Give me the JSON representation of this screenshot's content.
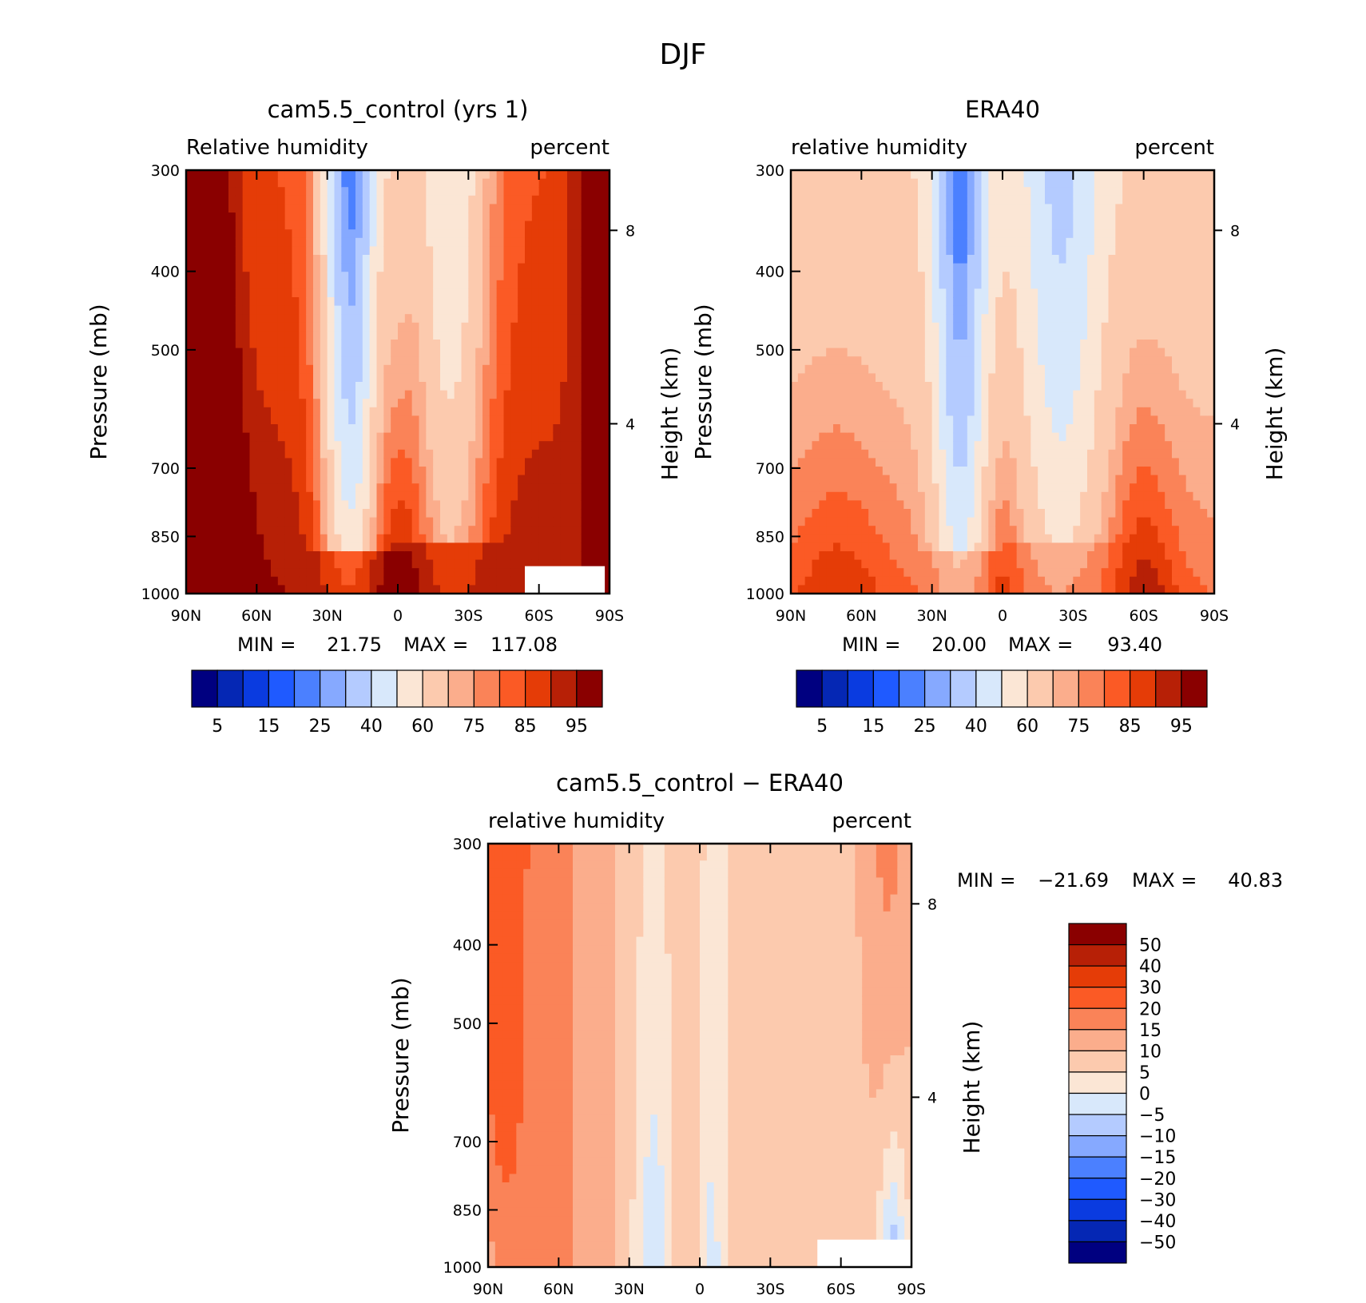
{
  "title": "DJF",
  "colors": {
    "abs_scale": [
      "#000080",
      "#0527b4",
      "#0a3be0",
      "#1f5aff",
      "#4b80ff",
      "#86a9ff",
      "#b4cbff",
      "#d8e8fb",
      "#fbe6d5",
      "#fccaae",
      "#fbad8c",
      "#fa8358",
      "#fb5a25",
      "#e53c07",
      "#b72006",
      "#8a0000"
    ],
    "diff_scale": [
      "#000080",
      "#0527b4",
      "#0a3be0",
      "#1f5aff",
      "#4b80ff",
      "#86a9ff",
      "#b4cbff",
      "#d8e8fb",
      "#fbe6d5",
      "#fccaae",
      "#fbad8c",
      "#fa8358",
      "#fb5a25",
      "#e53c07",
      "#b72006",
      "#8a0000"
    ]
  },
  "chart_data": [
    {
      "type": "heatmap",
      "title": "cam5.5_control (yrs 1)",
      "left_label": "Relative humidity",
      "right_label": "percent",
      "xlabel": "",
      "ylabel": "Pressure (mb)",
      "ylabel_right": "Height (km)",
      "x_ticks": [
        "90N",
        "60N",
        "30N",
        "0",
        "30S",
        "60S",
        "90S"
      ],
      "x_range": [
        90,
        -90
      ],
      "y_ticks": [
        "300",
        "400",
        "500",
        "700",
        "850",
        "1000"
      ],
      "y_tick_values": [
        300,
        400,
        500,
        700,
        850,
        1000
      ],
      "y_range": [
        300,
        1000
      ],
      "y_scale": "log",
      "right_ticks": [
        "8",
        "4"
      ],
      "right_tick_pressure": [
        356,
        617
      ],
      "min_label": "MIN =",
      "min_value": "21.75",
      "max_label": "MAX =",
      "max_value": "117.08",
      "colorbar_labels": [
        "5",
        "15",
        "25",
        "40",
        "60",
        "75",
        "85",
        "95"
      ],
      "field": "model",
      "blank_region": {
        "lat": [
          -54,
          -88
        ],
        "p": [
          925,
          1000
        ]
      }
    },
    {
      "type": "heatmap",
      "title": "ERA40",
      "left_label": "relative humidity",
      "right_label": "percent",
      "xlabel": "",
      "ylabel": "Pressure (mb)",
      "ylabel_right": "Height (km)",
      "x_ticks": [
        "90N",
        "60N",
        "30N",
        "0",
        "30S",
        "60S",
        "90S"
      ],
      "x_range": [
        90,
        -90
      ],
      "y_ticks": [
        "300",
        "400",
        "500",
        "700",
        "850",
        "1000"
      ],
      "y_tick_values": [
        300,
        400,
        500,
        700,
        850,
        1000
      ],
      "y_range": [
        300,
        1000
      ],
      "y_scale": "log",
      "right_ticks": [
        "8",
        "4"
      ],
      "right_tick_pressure": [
        356,
        617
      ],
      "min_label": "MIN =",
      "min_value": "20.00",
      "max_label": "MAX =",
      "max_value": "93.40",
      "colorbar_labels": [
        "5",
        "15",
        "25",
        "40",
        "60",
        "75",
        "85",
        "95"
      ],
      "field": "obs"
    },
    {
      "type": "heatmap",
      "title": "cam5.5_control - ERA40",
      "left_label": "relative humidity",
      "right_label": "percent",
      "xlabel": "",
      "ylabel": "Pressure (mb)",
      "ylabel_right": "Height (km)",
      "x_ticks": [
        "90N",
        "60N",
        "30N",
        "0",
        "30S",
        "60S",
        "90S"
      ],
      "x_range": [
        90,
        -90
      ],
      "y_ticks": [
        "300",
        "400",
        "500",
        "700",
        "850",
        "1000"
      ],
      "y_tick_values": [
        300,
        400,
        500,
        700,
        850,
        1000
      ],
      "y_range": [
        300,
        1000
      ],
      "y_scale": "log",
      "right_ticks": [
        "8",
        "4"
      ],
      "right_tick_pressure": [
        356,
        617
      ],
      "min_label": "MIN =",
      "min_value": "-21.69",
      "max_label": "MAX =",
      "max_value": "40.83",
      "colorbar_labels": [
        "50",
        "40",
        "30",
        "20",
        "15",
        "10",
        "5",
        "0",
        "-5",
        "-10",
        "-15",
        "-20",
        "-30",
        "-40",
        "-50"
      ],
      "field": "diff",
      "blank_region": {
        "lat": [
          -50,
          -90
        ],
        "p": [
          925,
          1000
        ]
      }
    }
  ]
}
